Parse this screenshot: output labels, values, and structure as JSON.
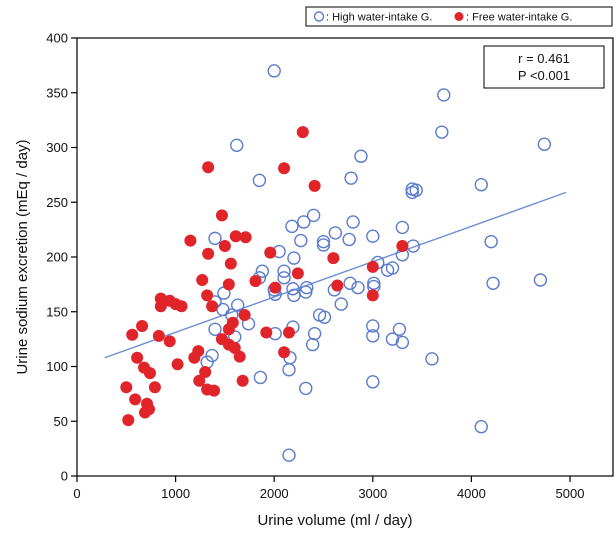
{
  "chart_data": {
    "type": "scatter",
    "xlabel": "Urine volume (ml / day)",
    "ylabel": "Urine sodium excretion  (mEq / day)",
    "xlim": [
      0,
      5000
    ],
    "ylim": [
      0,
      400
    ],
    "xticks": [
      "0",
      "1000",
      "2000",
      "3000",
      "4000",
      "5000"
    ],
    "yticks": [
      "0",
      "50",
      "100",
      "150",
      "200",
      "250",
      "300",
      "350",
      "400"
    ],
    "legend": {
      "placement": "top-right",
      "entries": [
        {
          "marker": "○",
          "label": ": High water-intake G.",
          "color": "#5b7ccc"
        },
        {
          "marker": "●",
          "label": ": Free water-intake G.",
          "color": "#e0242a"
        }
      ]
    },
    "annotation": {
      "r": "r = 0.461",
      "p": "P <0.001"
    },
    "regression": {
      "x": [
        280,
        4960
      ],
      "y": [
        108,
        259
      ],
      "color": "#6e8fd6"
    },
    "series": [
      {
        "name": "High water-intake G.",
        "marker": "open-circle",
        "color": "#5b7ccc",
        "points": [
          [
            2000,
            370
          ],
          [
            1620,
            302
          ],
          [
            1850,
            270
          ],
          [
            2880,
            292
          ],
          [
            2780,
            272
          ],
          [
            3720,
            348
          ],
          [
            3700,
            314
          ],
          [
            4740,
            303
          ],
          [
            4100,
            266
          ],
          [
            3400,
            262
          ],
          [
            3440,
            261
          ],
          [
            3400,
            259
          ],
          [
            2400,
            238
          ],
          [
            2300,
            232
          ],
          [
            2180,
            228
          ],
          [
            2800,
            232
          ],
          [
            2500,
            214
          ],
          [
            2500,
            211
          ],
          [
            2620,
            222
          ],
          [
            2760,
            216
          ],
          [
            3000,
            219
          ],
          [
            3300,
            227
          ],
          [
            4200,
            214
          ],
          [
            3410,
            210
          ],
          [
            2050,
            205
          ],
          [
            2200,
            199
          ],
          [
            2270,
            215
          ],
          [
            1400,
            217
          ],
          [
            2100,
            187
          ],
          [
            1880,
            187
          ],
          [
            1850,
            181
          ],
          [
            2100,
            181
          ],
          [
            2000,
            170
          ],
          [
            2010,
            166
          ],
          [
            2190,
            171
          ],
          [
            2200,
            165
          ],
          [
            2320,
            168
          ],
          [
            2330,
            172
          ],
          [
            2610,
            170
          ],
          [
            2770,
            176
          ],
          [
            2850,
            172
          ],
          [
            3010,
            176
          ],
          [
            3010,
            173
          ],
          [
            3150,
            188
          ],
          [
            3200,
            190
          ],
          [
            3300,
            202
          ],
          [
            3050,
            195
          ],
          [
            4220,
            176
          ],
          [
            4700,
            179
          ],
          [
            1490,
            167
          ],
          [
            1400,
            159
          ],
          [
            1630,
            156
          ],
          [
            1480,
            152
          ],
          [
            1570,
            147
          ],
          [
            2460,
            147
          ],
          [
            2510,
            145
          ],
          [
            2680,
            157
          ],
          [
            1400,
            134
          ],
          [
            1600,
            127
          ],
          [
            1740,
            139
          ],
          [
            2190,
            136
          ],
          [
            2010,
            130
          ],
          [
            2410,
            130
          ],
          [
            2390,
            120
          ],
          [
            3000,
            137
          ],
          [
            3000,
            128
          ],
          [
            3270,
            134
          ],
          [
            3300,
            122
          ],
          [
            3200,
            125
          ],
          [
            3600,
            107
          ],
          [
            2160,
            108
          ],
          [
            1370,
            110
          ],
          [
            1320,
            104
          ],
          [
            1860,
            90
          ],
          [
            2150,
            97
          ],
          [
            2320,
            80
          ],
          [
            3000,
            86
          ],
          [
            4100,
            45
          ],
          [
            2150,
            19
          ]
        ]
      },
      {
        "name": "Free water-intake G.",
        "marker": "filled-circle",
        "color": "#e0242a",
        "points": [
          [
            2290,
            314
          ],
          [
            2100,
            281
          ],
          [
            1330,
            282
          ],
          [
            2410,
            265
          ],
          [
            1470,
            238
          ],
          [
            1150,
            215
          ],
          [
            1500,
            210
          ],
          [
            1610,
            219
          ],
          [
            1710,
            218
          ],
          [
            1960,
            204
          ],
          [
            2240,
            185
          ],
          [
            2600,
            199
          ],
          [
            1330,
            203
          ],
          [
            1560,
            194
          ],
          [
            1810,
            178
          ],
          [
            2010,
            172
          ],
          [
            2640,
            174
          ],
          [
            3300,
            210
          ],
          [
            3000,
            191
          ],
          [
            1320,
            165
          ],
          [
            1270,
            179
          ],
          [
            850,
            162
          ],
          [
            940,
            160
          ],
          [
            850,
            155
          ],
          [
            1000,
            157
          ],
          [
            1060,
            155
          ],
          [
            1540,
            175
          ],
          [
            1370,
            155
          ],
          [
            1580,
            140
          ],
          [
            1700,
            147
          ],
          [
            1920,
            131
          ],
          [
            2150,
            131
          ],
          [
            3000,
            165
          ],
          [
            560,
            129
          ],
          [
            660,
            137
          ],
          [
            830,
            128
          ],
          [
            940,
            123
          ],
          [
            1540,
            134
          ],
          [
            1470,
            125
          ],
          [
            1540,
            120
          ],
          [
            1230,
            114
          ],
          [
            1190,
            108
          ],
          [
            1300,
            95
          ],
          [
            1020,
            102
          ],
          [
            1650,
            109
          ],
          [
            610,
            108
          ],
          [
            680,
            99
          ],
          [
            740,
            94
          ],
          [
            1600,
            117
          ],
          [
            1680,
            87
          ],
          [
            2100,
            113
          ],
          [
            1240,
            87
          ],
          [
            1320,
            79
          ],
          [
            1390,
            78
          ],
          [
            500,
            81
          ],
          [
            590,
            70
          ],
          [
            790,
            81
          ],
          [
            710,
            66
          ],
          [
            690,
            58
          ],
          [
            730,
            61
          ],
          [
            520,
            51
          ]
        ]
      }
    ]
  }
}
